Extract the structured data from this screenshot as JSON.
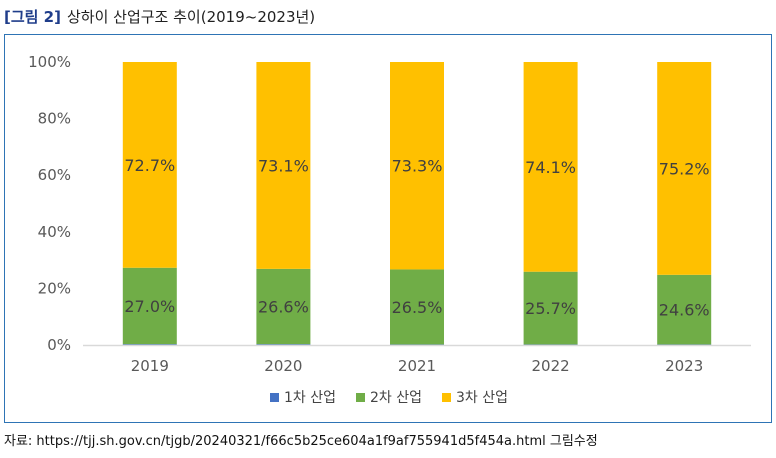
{
  "title": {
    "label": "[그림 2]",
    "text": "상하이 산업구조 추이(2019~2023년)"
  },
  "source": "자료: https://tjj.sh.gov.cn/tjgb/20240321/f66c5b25ce604a1f9af755941d5f454a.html 그림수정",
  "colors": {
    "primary": "#4472c4",
    "secondary": "#70ad47",
    "tertiary": "#ffc000",
    "frame": "#2e74b5"
  },
  "chart_data": {
    "type": "bar",
    "stacked": true,
    "percent_stacked": true,
    "categories": [
      "2019",
      "2020",
      "2021",
      "2022",
      "2023"
    ],
    "series": [
      {
        "name": "1차 산업",
        "values": [
          0.3,
          0.3,
          0.2,
          0.2,
          0.2
        ],
        "labels": [
          "",
          "",
          "",
          "",
          ""
        ]
      },
      {
        "name": "2차 산업",
        "values": [
          27.0,
          26.6,
          26.5,
          25.7,
          24.6
        ],
        "labels": [
          "27.0%",
          "26.6%",
          "26.5%",
          "25.7%",
          "24.6%"
        ]
      },
      {
        "name": "3차 산업",
        "values": [
          72.7,
          73.1,
          73.3,
          74.1,
          75.2
        ],
        "labels": [
          "72.7%",
          "73.1%",
          "73.3%",
          "74.1%",
          "75.2%"
        ]
      }
    ],
    "yticks": [
      "0%",
      "20%",
      "40%",
      "60%",
      "80%",
      "100%"
    ],
    "ylim": [
      0,
      100
    ],
    "grid": false,
    "legend": "bottom-center"
  }
}
